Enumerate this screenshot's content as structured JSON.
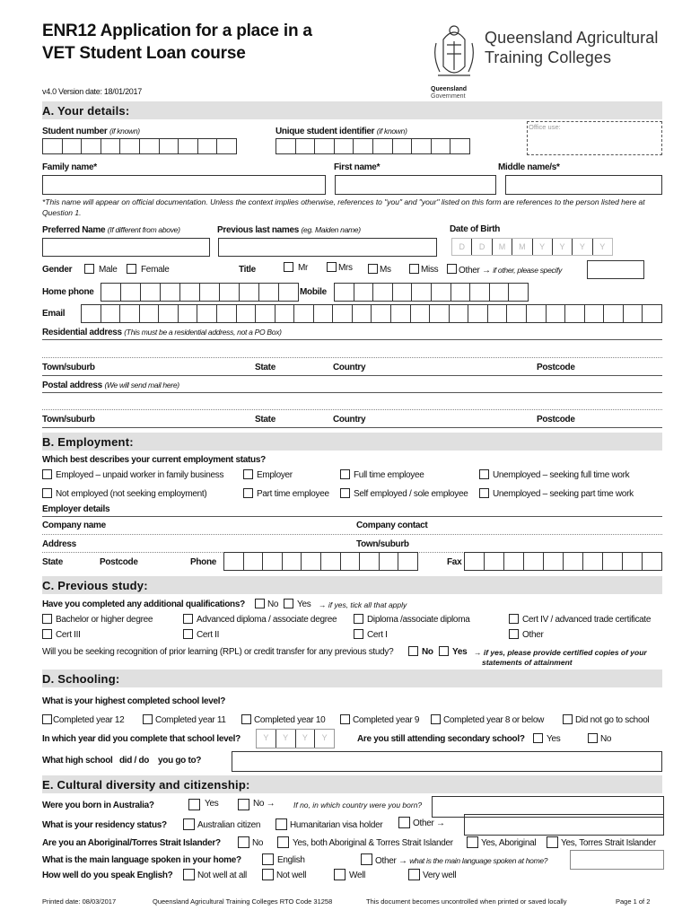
{
  "header": {
    "title1": "ENR12 Application for a place in a",
    "title2": "VET Student Loan course",
    "org1": "Queensland Agricultural",
    "org2": "Training Colleges",
    "gov1": "Queensland",
    "gov2": "Government",
    "version": "v4.0  Version date: 18/01/2017"
  },
  "a": {
    "heading": "A.   Your details:",
    "student_number": "Student number",
    "if_known": "(if known)",
    "usi": "Unique student identifier",
    "office_use": "Office use:",
    "family": "Family name*",
    "first": "First name*",
    "middle": "Middle name/s*",
    "note1": "*This name will appear on official documentation.   Unless the context implies otherwise, references to \"you\" and \"your\" listed on this form are references to the person listed here at",
    "note2": "Question 1.",
    "preferred": "Preferred Name",
    "preferred_hint": "(If different from above)",
    "previous": "Previous last names",
    "previous_hint": "(eg. Maiden name)",
    "dob": "Date of Birth",
    "dob_ph": [
      "D",
      "D",
      "M",
      "M",
      "Y",
      "Y",
      "Y",
      "Y"
    ],
    "gender": "Gender",
    "male": "Male",
    "female": "Female",
    "title": "Title",
    "mr": "Mr",
    "mrs": "Mrs",
    "ms": "Ms",
    "miss": "Miss",
    "other": "Other →",
    "other_hint": "if other, please specify",
    "home_phone": "Home phone",
    "mobile": "Mobile",
    "email": "Email",
    "residential": "Residential address",
    "residential_hint": "(This must be a residential  address, not a PO Box)",
    "town": "Town/suburb",
    "state": "State",
    "country": "Country",
    "postcode": "Postcode",
    "postal": "Postal address",
    "postal_hint": "(We will send mail here)"
  },
  "b": {
    "heading": "B.   Employment:",
    "question": "Which best describes your current employment status?",
    "opts": [
      "Employed – unpaid worker in family business",
      "Employer",
      "Full time employee",
      "Unemployed – seeking full time work",
      "Not employed (not seeking employment)",
      "Part time employee",
      "Self employed / sole employee",
      "Unemployed – seeking part time work"
    ],
    "employer": "Employer details",
    "company": "Company name",
    "contact": "Company contact",
    "address": "Address",
    "town": "Town/suburb",
    "state": "State",
    "postcode": "Postcode",
    "phone": "Phone",
    "fax": "Fax"
  },
  "c": {
    "heading": "C.   Previous study:",
    "question": "Have you completed any additional qualifications?",
    "no": "No",
    "yes": "Yes",
    "yes_hint": "→ if yes, tick all that apply",
    "opts": [
      "Bachelor or higher degree",
      "Advanced diploma / associate degree",
      "Diploma /associate diploma",
      "Cert IV / advanced trade certificate",
      "Cert III",
      "Cert II",
      "Cert I",
      "Other"
    ],
    "rpl": "Will you be seeking recognition of prior learning (RPL) or credit transfer for any previous study?",
    "rpl_hint1": "→ if yes, please provide certified copies of your",
    "rpl_hint2": "statements of attainment"
  },
  "d": {
    "heading": "D.   Schooling:",
    "question": "What is your highest completed school level?",
    "opts": [
      "Completed year 12",
      "Completed year 11",
      "Completed year 10",
      "Completed year 9",
      "Completed year 8 or below",
      "Did not go to school"
    ],
    "year_q": "In which year did you complete that school level?",
    "year_ph": [
      "Y",
      "Y",
      "Y",
      "Y"
    ],
    "attending": "Are you still attending secondary school?",
    "yes": "Yes",
    "no": "No",
    "highschool": "What high school   did / do    you go to?"
  },
  "e": {
    "heading": "E.   Cultural diversity and citizenship:",
    "born": "Were you born in Australia?",
    "yes": "Yes",
    "no_arrow": "No →",
    "born_hint": "If no, in which country were you born?",
    "residency": "What is your residency status?",
    "citizen": "Australian citizen",
    "humanitarian": "Humanitarian visa holder",
    "other_arrow": "Other  →",
    "atsi": "Are you an Aboriginal/Torres Strait Islander?",
    "no": "No",
    "both": "Yes, both Aboriginal & Torres Strait Islander",
    "aboriginal": "Yes, Aboriginal",
    "torres": "Yes, Torres Strait Islander",
    "language": "What is the main language spoken in your home?",
    "english": "English",
    "lang_other": "Other →",
    "lang_hint": "what is the main language spoken at home?",
    "speak": "How well do you speak English?",
    "levels": [
      "Not well at all",
      "Not well",
      "Well",
      "Very well"
    ]
  },
  "footer": {
    "printed": "Printed date: 08/03/2017",
    "rto": "Queensland Agricultural Training Colleges RTO Code 31258",
    "uncontrolled": "This document becomes uncontrolled when printed or saved locally",
    "page": "Page 1 of 2"
  }
}
